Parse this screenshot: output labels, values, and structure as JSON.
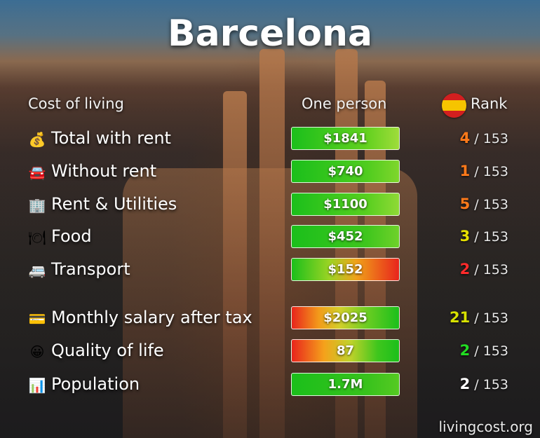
{
  "title": "Barcelona",
  "headers": {
    "category": "Cost of living",
    "value": "One person",
    "rank": "Rank"
  },
  "rows": [
    {
      "icon": "money-bag-icon",
      "glyph": "💰",
      "label": "Total with rent",
      "value": "$1841",
      "rank": "4",
      "rank_total": "/ 153",
      "rank_color": "#ff7a1a",
      "bar_gradient": "linear-gradient(90deg, #1bbf1b, #63d11f 70%, #9fdc3a)"
    },
    {
      "icon": "car-icon",
      "glyph": "🚘",
      "label": "Without rent",
      "value": "$740",
      "rank": "1",
      "rank_total": "/ 153",
      "rank_color": "#ff7a1a",
      "bar_gradient": "linear-gradient(90deg, #1bbf1b, #4fcc1e 70%, #7fd62c)"
    },
    {
      "icon": "building-icon",
      "glyph": "🏢",
      "label": "Rent & Utilities",
      "value": "$1100",
      "rank": "5",
      "rank_total": "/ 153",
      "rank_color": "#ff7a1a",
      "bar_gradient": "linear-gradient(90deg, #1bbf1b, #58cf1f 70%, #8fd936)"
    },
    {
      "icon": "plate-icon",
      "glyph": "🍽",
      "label": "Food",
      "value": "$452",
      "rank": "3",
      "rank_total": "/ 153",
      "rank_color": "#e7e000",
      "bar_gradient": "linear-gradient(90deg, #1bbf1b, #3fc61d 70%, #6fd12a)"
    },
    {
      "icon": "bus-icon",
      "glyph": "🚐",
      "label": "Transport",
      "value": "$152",
      "rank": "2",
      "rank_total": "/ 153",
      "rank_color": "#ff2b2b",
      "bar_gradient": "linear-gradient(90deg, #1bbf1b, #9bd424 35%, #f0a21a 60%, #e8241c)"
    },
    {
      "icon": "credit-card-icon",
      "glyph": "💳",
      "label": "Monthly salary after tax",
      "value": "$2025",
      "rank": "21",
      "rank_total": "/ 153",
      "rank_color": "#d7e100",
      "bar_gradient": "linear-gradient(90deg, #e8241c, #f39a1a 25%, #d2cf2a 45%, #6ccd22 70%, #1bbf1b)"
    },
    {
      "icon": "smiley-icon",
      "glyph": "😀",
      "label": "Quality of life",
      "value": "87",
      "rank": "2",
      "rank_total": "/ 153",
      "rank_color": "#22dd22",
      "bar_gradient": "linear-gradient(90deg, #e8241c, #f5a11b 30%, #bfd22a 55%, #3fc61d 80%, #1bbf1b)"
    },
    {
      "icon": "bar-chart-icon",
      "glyph": "📊",
      "label": "Population",
      "value": "1.7M",
      "rank": "2",
      "rank_total": "/ 153",
      "rank_color": "#ffffff",
      "bar_gradient": "linear-gradient(90deg, #1bbf1b, #38c21c 70%, #55ca22)"
    }
  ],
  "footer": "livingcost.org"
}
